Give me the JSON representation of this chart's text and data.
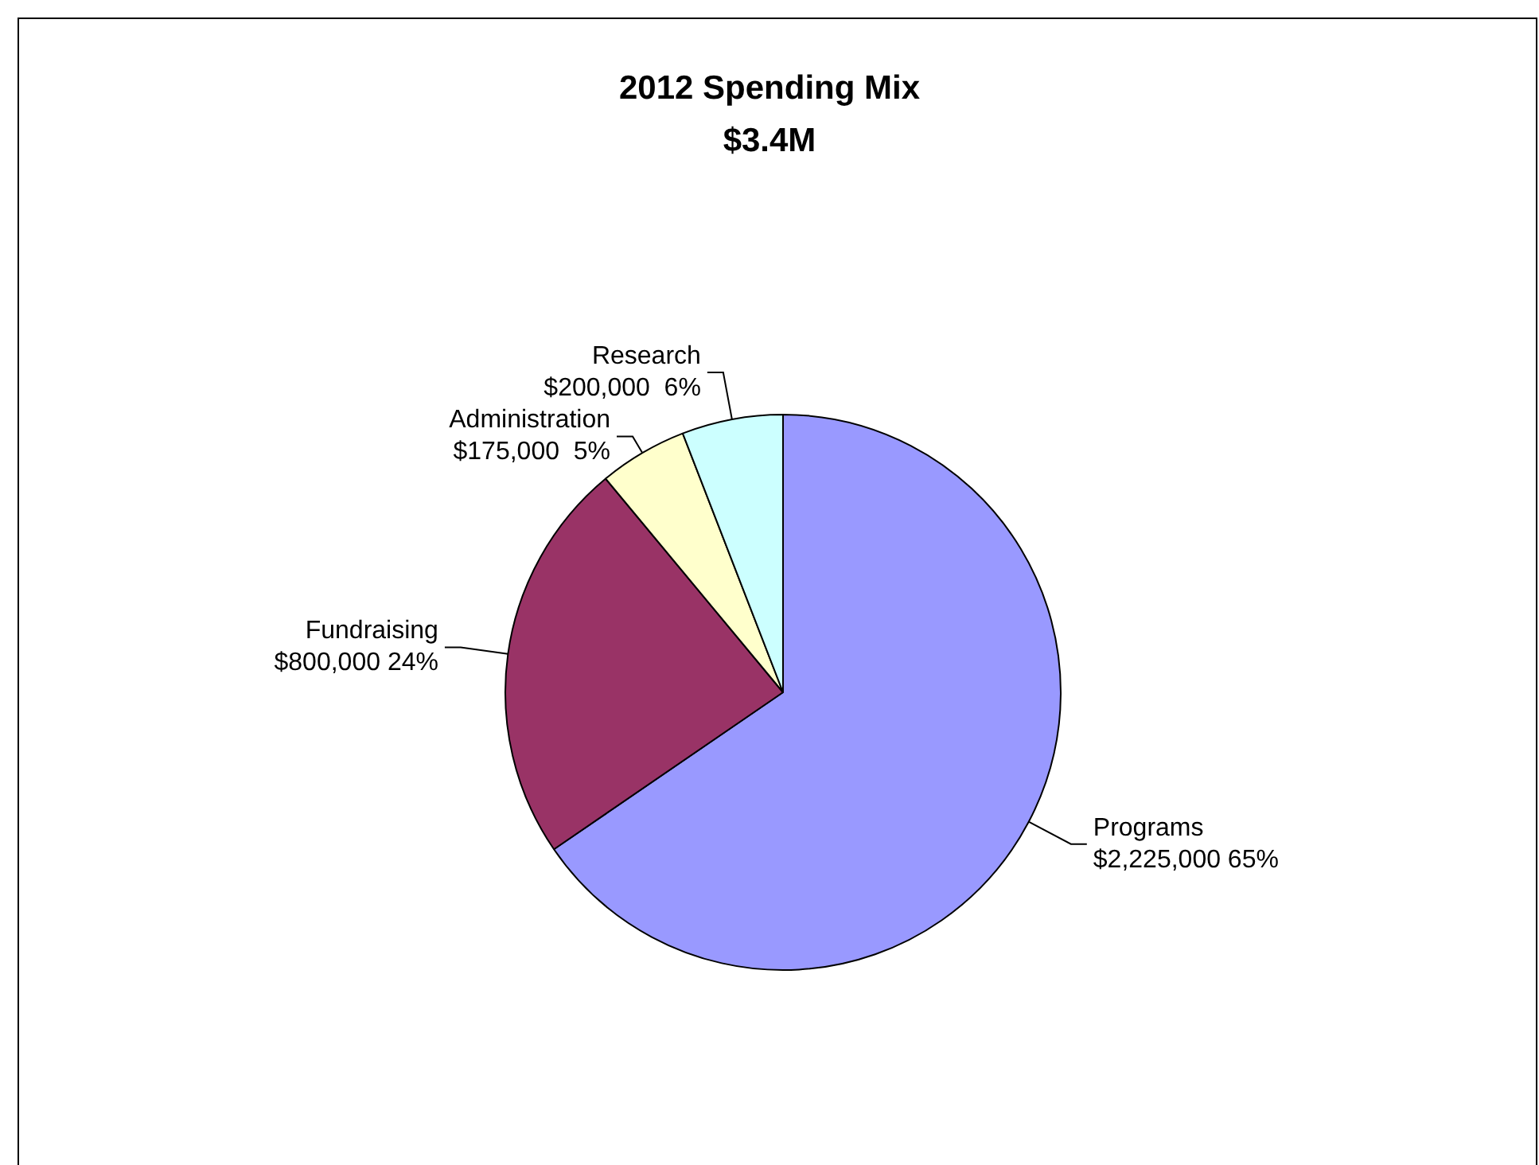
{
  "chart_data": {
    "type": "pie",
    "title": "2012 Spending Mix",
    "subtitle": "$3.4M",
    "categories": [
      "Programs",
      "Fundraising",
      "Administration",
      "Research"
    ],
    "values": [
      2225000,
      800000,
      175000,
      200000
    ],
    "colors": [
      "#9999ff",
      "#993366",
      "#ffffcc",
      "#ccffff"
    ],
    "value_labels": [
      "$2,225,000 65%",
      "$800,000 24%",
      "$175,000  5%",
      "$200,000  6%"
    ],
    "legend": false
  }
}
